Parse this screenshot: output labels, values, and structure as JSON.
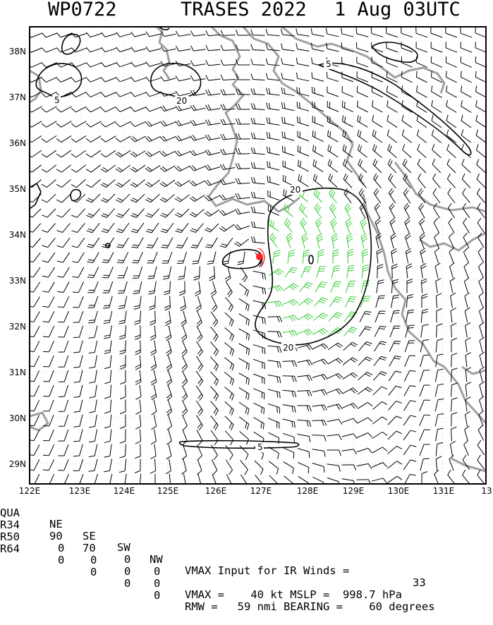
{
  "title": {
    "storm_id": "WP0722",
    "storm_name": "TRASES 2022",
    "datetime": "1 Aug 03UTC"
  },
  "map": {
    "lon_labels": [
      "122E",
      "123E",
      "124E",
      "125E",
      "126E",
      "127E",
      "128E",
      "129E",
      "130E",
      "131E",
      "13"
    ],
    "lat_labels": [
      "38N",
      "37N",
      "36N",
      "35N",
      "34N",
      "33N",
      "32N",
      "31N",
      "30N",
      "29N"
    ],
    "contour_labels": [
      "5",
      "20",
      "5",
      "20",
      "20",
      "5"
    ],
    "colors": {
      "coastline": "#a0a0a0",
      "barb_default": "#000000",
      "barb_gale": "#33cc33",
      "storm_center": "#ff2020",
      "contour": "#000000"
    },
    "storm_center_lon": 127.03,
    "storm_center_lat": 33.5
  },
  "info": {
    "headers": {
      "qua": "QUA",
      "ne": "NE",
      "se": "SE",
      "sw": "SW",
      "nw": "NW"
    },
    "vmax_input_text": "VMAX Input for IR Winds =",
    "vmax_input_value": "33",
    "r34": {
      "label": "R34",
      "ne": "90",
      "se": "70",
      "sw": "0",
      "nw": "0"
    },
    "r50": {
      "label": "R50",
      "ne": "0",
      "se": "0",
      "sw": "0",
      "nw": "0"
    },
    "r64": {
      "label": "R64",
      "ne": "0",
      "se": "0",
      "sw": "0",
      "nw": "0"
    },
    "vmax_line": "VMAX =    40 kt MSLP =  998.7 hPa",
    "rmw_line": "RMW =   59 nmi BEARING =    60 degrees"
  }
}
